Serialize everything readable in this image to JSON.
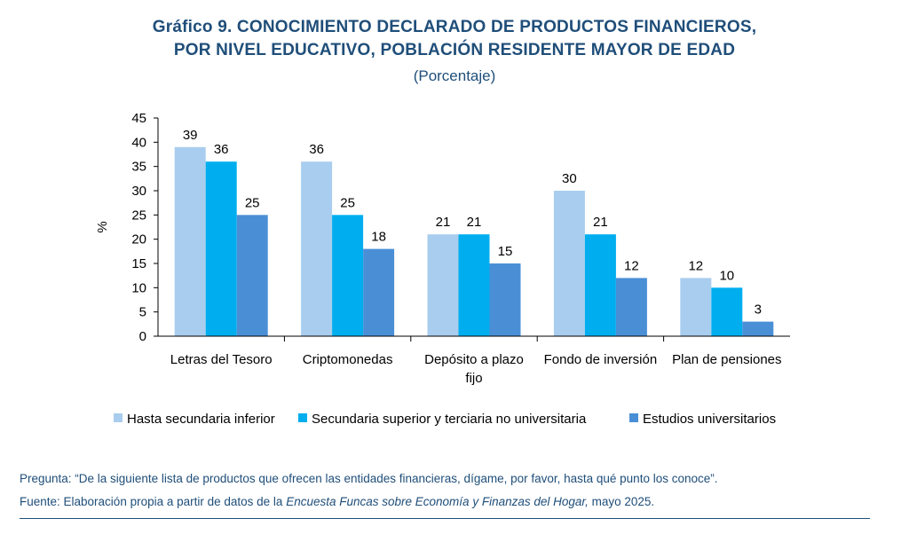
{
  "header": {
    "title_line1": "Gráfico 9. CONOCIMIENTO DECLARADO DE PRODUCTOS FINANCIEROS,",
    "title_line2": "POR NIVEL EDUCATIVO, POBLACIÓN RESIDENTE MAYOR DE EDAD",
    "subtitle": "(Porcentaje)"
  },
  "chart_data": {
    "type": "bar",
    "categories": [
      [
        "Letras del Tesoro"
      ],
      [
        "Criptomonedas"
      ],
      [
        "Depósito a plazo",
        "fijo"
      ],
      [
        "Fondo de inversión"
      ],
      [
        "Plan de pensiones"
      ]
    ],
    "series": [
      {
        "name": "Hasta secundaria inferior",
        "values": [
          39,
          36,
          21,
          30,
          12
        ],
        "color": "#a9cdee"
      },
      {
        "name": "Secundaria superior y terciaria no universitaria",
        "values": [
          36,
          25,
          21,
          21,
          10
        ],
        "color": "#00aeef"
      },
      {
        "name": "Estudios universitarios",
        "values": [
          25,
          18,
          15,
          12,
          3
        ],
        "color": "#4a8fd6"
      }
    ],
    "ylabel": "%",
    "ylim": [
      0,
      45
    ],
    "yticks": [
      0,
      5,
      10,
      15,
      20,
      25,
      30,
      35,
      40,
      45
    ],
    "legend_position": "bottom",
    "grid": false
  },
  "footer": {
    "question": "Pregunta: “De la siguiente lista de productos que ofrecen las entidades financieras, dígame, por favor, hasta qué punto los conoce”.",
    "source_prefix": "Fuente: Elaboración propia a partir de datos de la ",
    "source_italic": "Encuesta Funcas sobre Economía y Finanzas del Hogar,",
    "source_suffix": " mayo 2025."
  }
}
